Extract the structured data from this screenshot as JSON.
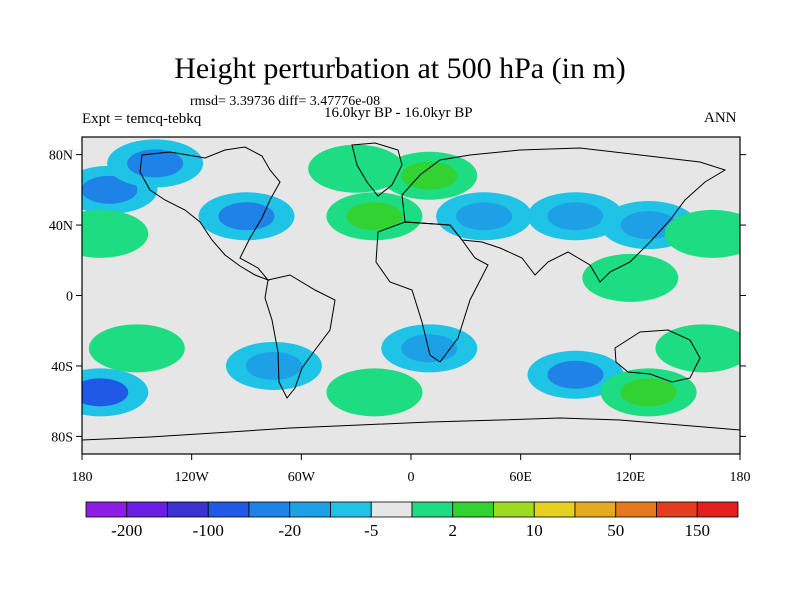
{
  "title": "Height perturbation at 500 hPa (in m)",
  "stats": "rmsd= 3.39736 diff= 3.47776e-08",
  "expt": "Expt = temcq-tebkq",
  "period": "16.0kyr BP - 16.0kyr BP",
  "season": "ANN",
  "lat_labels": [
    "80N",
    "40N",
    "0",
    "40S",
    "80S"
  ],
  "lon_labels": [
    "180",
    "120W",
    "60W",
    "0",
    "60E",
    "120E",
    "180"
  ],
  "colorbar": {
    "colors": [
      "#8c1ee6",
      "#6a1ee6",
      "#3c32d2",
      "#1e5ae6",
      "#1e82e6",
      "#1ea0e6",
      "#1ec3e6",
      "#e6e6e6",
      "#1edc82",
      "#32d232",
      "#9bdc1e",
      "#e6d21e",
      "#e6aa1e",
      "#e6781e",
      "#e63c1e",
      "#e61e1e"
    ],
    "labels": [
      "-200",
      "-100",
      "-20",
      "-5",
      "2",
      "10",
      "50",
      "150"
    ]
  },
  "anomalies": [
    {
      "lon": -165,
      "lat": 60,
      "class": 4
    },
    {
      "lon": -140,
      "lat": 75,
      "class": 4
    },
    {
      "lon": -170,
      "lat": 35,
      "class": 8
    },
    {
      "lon": -90,
      "lat": 45,
      "class": 4
    },
    {
      "lon": -30,
      "lat": 72,
      "class": 8
    },
    {
      "lon": 10,
      "lat": 68,
      "class": 9
    },
    {
      "lon": -20,
      "lat": 45,
      "class": 9
    },
    {
      "lon": 40,
      "lat": 45,
      "class": 5
    },
    {
      "lon": 90,
      "lat": 45,
      "class": 5
    },
    {
      "lon": 130,
      "lat": 40,
      "class": 5
    },
    {
      "lon": 165,
      "lat": 35,
      "class": 8
    },
    {
      "lon": 120,
      "lat": 10,
      "class": 8
    },
    {
      "lon": -150,
      "lat": -30,
      "class": 8
    },
    {
      "lon": -170,
      "lat": -55,
      "class": 3
    },
    {
      "lon": -75,
      "lat": -40,
      "class": 5
    },
    {
      "lon": -20,
      "lat": -55,
      "class": 8
    },
    {
      "lon": 10,
      "lat": -30,
      "class": 5
    },
    {
      "lon": 90,
      "lat": -45,
      "class": 4
    },
    {
      "lon": 130,
      "lat": -55,
      "class": 9
    },
    {
      "lon": 160,
      "lat": -30,
      "class": 8
    }
  ]
}
